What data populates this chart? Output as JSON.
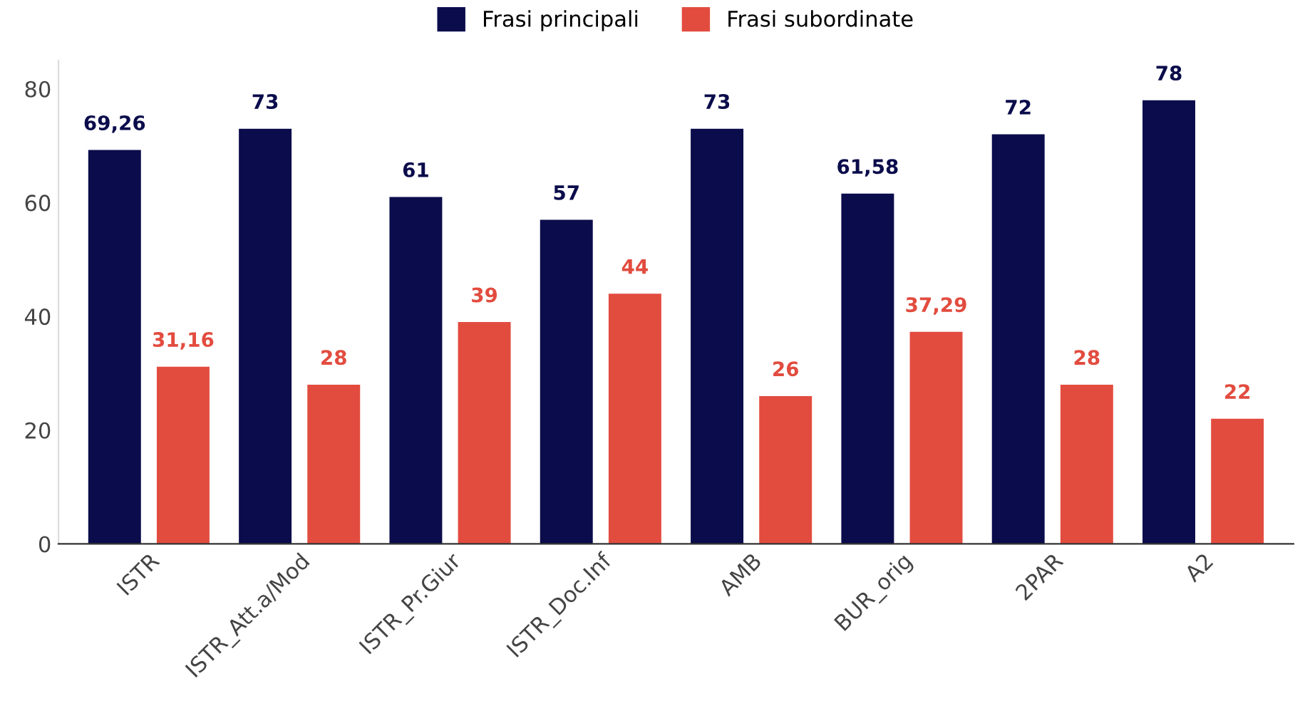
{
  "chart_data": {
    "type": "bar",
    "categories": [
      "ISTR",
      "ISTR_Att.a/Mod",
      "ISTR_Pr.Giur",
      "ISTR_Doc.Inf",
      "AMB",
      "BUR_orig",
      "2PAR",
      "A2"
    ],
    "series": [
      {
        "name": "Frasi principali",
        "color": "#0b0c4b",
        "values": [
          69.26,
          73,
          61,
          57,
          73,
          61.58,
          72,
          78
        ],
        "value_labels": [
          "69,26",
          "73",
          "61",
          "57",
          "73",
          "61,58",
          "72",
          "78"
        ]
      },
      {
        "name": "Frasi subordinate",
        "color": "#e24c3f",
        "values": [
          31.16,
          28,
          39,
          44,
          26,
          37.29,
          28,
          22
        ],
        "value_labels": [
          "31,16",
          "28",
          "39",
          "44",
          "26",
          "37,29",
          "28",
          "22"
        ]
      }
    ],
    "ylim": [
      0,
      85
    ],
    "yticks": [
      0,
      20,
      40,
      60,
      80
    ],
    "grid": false,
    "legend": "top"
  }
}
